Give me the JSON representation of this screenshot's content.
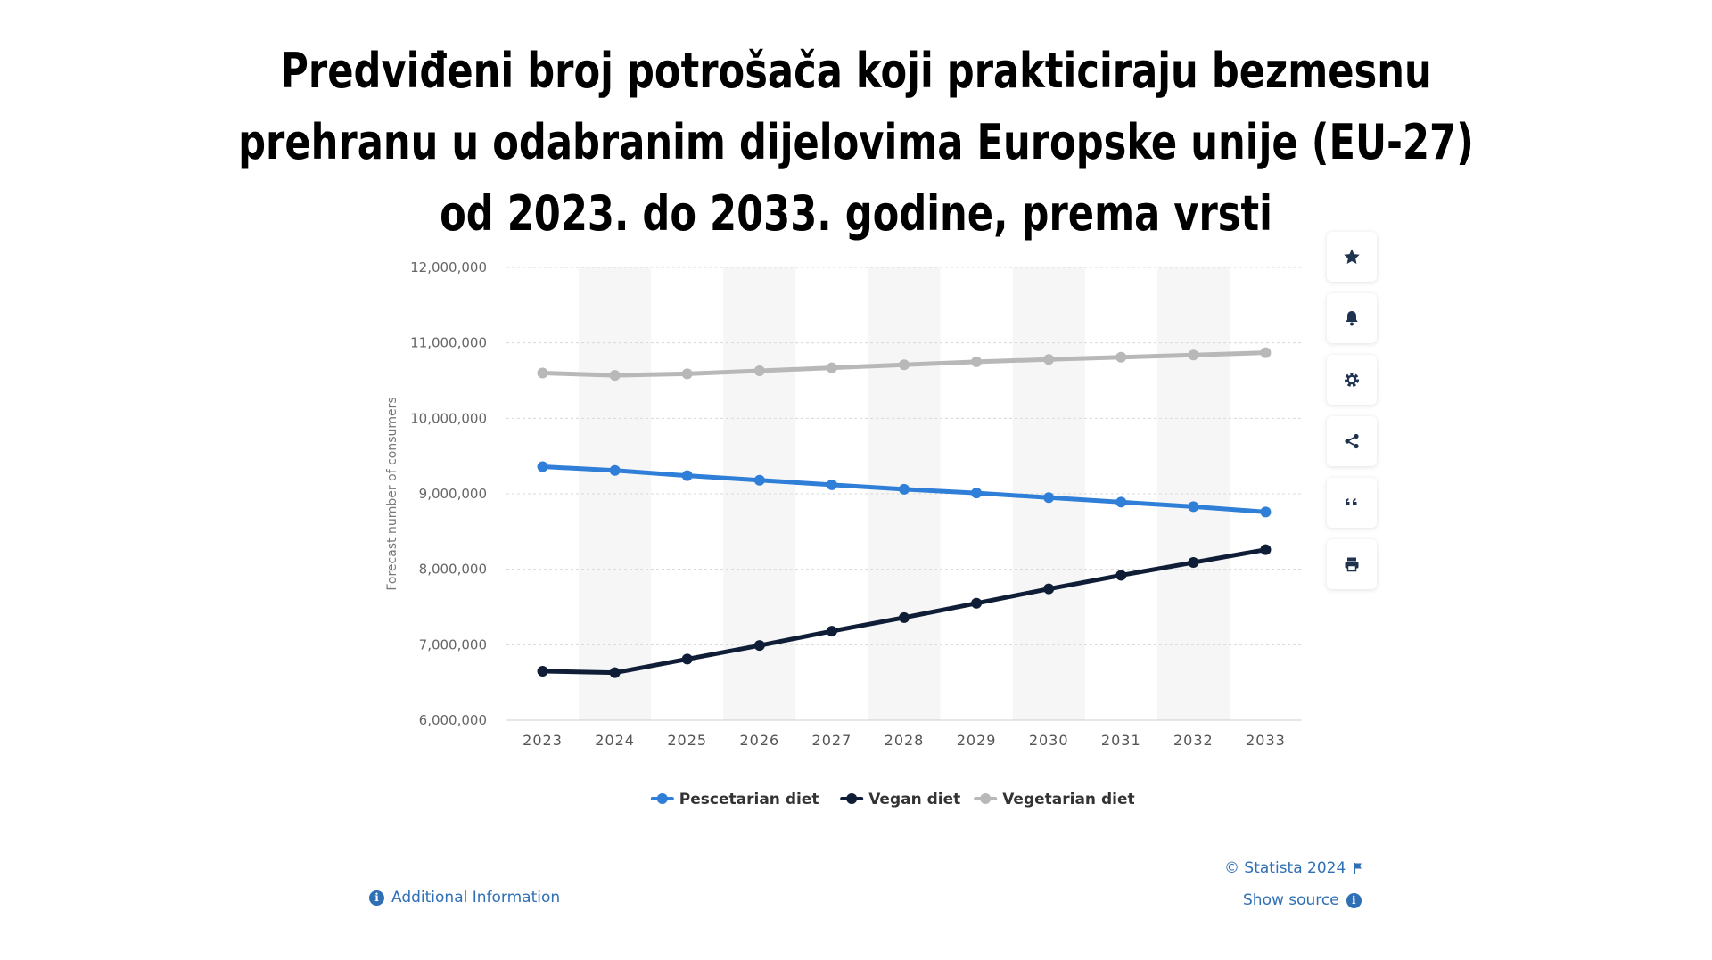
{
  "title": "Predviđeni broj potrošača koji prakticiraju bezmesnu prehranu u odabranim dijelovima Europske unije (EU-27) od 2023. do 2033. godine, prema vrsti",
  "toolbar": {
    "icons": [
      "star-icon",
      "bell-icon",
      "gear-icon",
      "share-icon",
      "quote-icon",
      "print-icon"
    ]
  },
  "footer": {
    "copyright": "© Statista 2024",
    "show_source": "Show source",
    "additional_info": "Additional Information"
  },
  "chart_data": {
    "type": "line",
    "title": "",
    "xlabel": "",
    "ylabel": "Forecast number of consumers",
    "x": [
      "2023",
      "2024",
      "2025",
      "2026",
      "2027",
      "2028",
      "2029",
      "2030",
      "2031",
      "2032",
      "2033"
    ],
    "ylim": [
      6000000,
      12000000
    ],
    "yticks": [
      6000000,
      7000000,
      8000000,
      9000000,
      10000000,
      11000000,
      12000000
    ],
    "ytick_labels": [
      "6,000,000",
      "7,000,000",
      "8,000,000",
      "9,000,000",
      "10,000,000",
      "11,000,000",
      "12,000,000"
    ],
    "grid": true,
    "legend": "bottom",
    "series": [
      {
        "name": "Pescetarian diet",
        "color": "#2f7ed8",
        "values": [
          9360000,
          9310000,
          9240000,
          9180000,
          9120000,
          9060000,
          9010000,
          8950000,
          8890000,
          8830000,
          8760000
        ]
      },
      {
        "name": "Vegan diet",
        "color": "#0f1e36",
        "values": [
          6650000,
          6630000,
          6810000,
          6990000,
          7180000,
          7360000,
          7550000,
          7740000,
          7920000,
          8090000,
          8260000
        ]
      },
      {
        "name": "Vegetarian diet",
        "color": "#b8b8b8",
        "values": [
          10600000,
          10570000,
          10590000,
          10630000,
          10670000,
          10710000,
          10750000,
          10780000,
          10810000,
          10840000,
          10870000
        ]
      }
    ]
  }
}
